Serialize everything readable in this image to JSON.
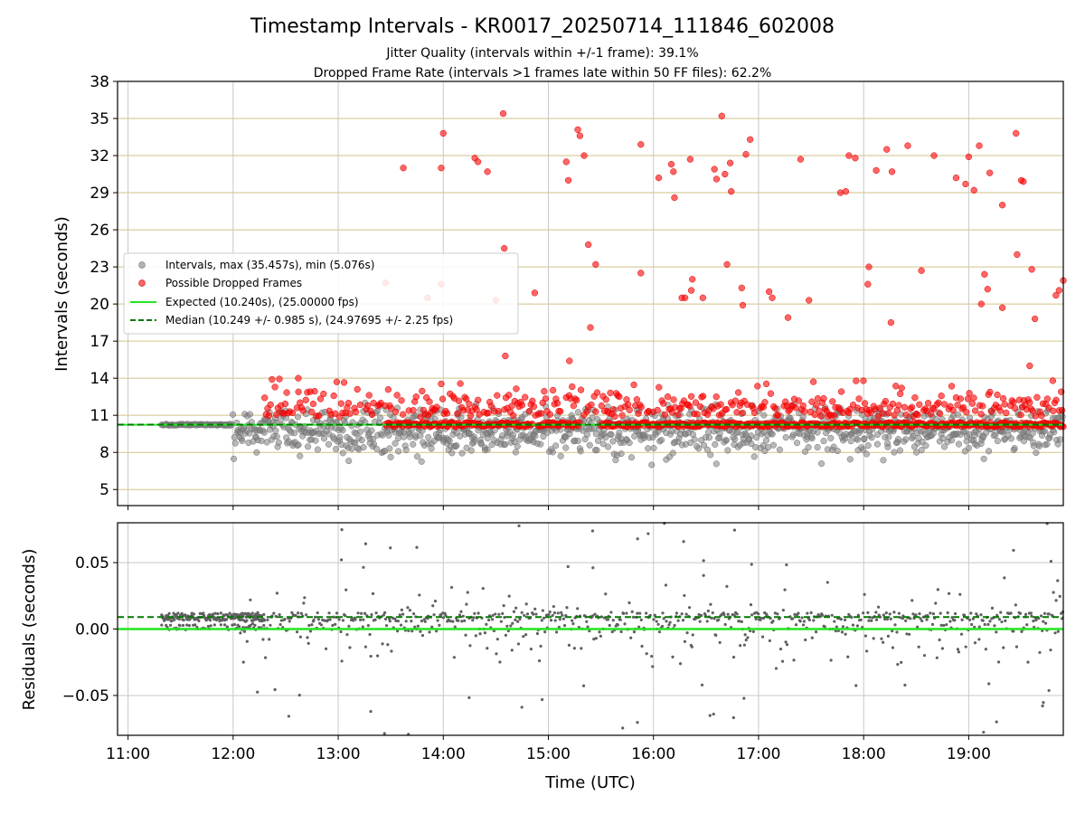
{
  "figure": {
    "title": "Timestamp Intervals - KR0017_20250714_111846_602008",
    "subtitle_1": "Jitter Quality (intervals within +/-1 frame): 39.1%",
    "subtitle_2": "Dropped Frame Rate (intervals >1 frames late within 50 FF files): 62.2%"
  },
  "chart_data": [
    {
      "type": "scatter",
      "panel": "top",
      "ylabel": "Intervals (seconds)",
      "xlabel": "",
      "xlim_hours": [
        10.9,
        19.9
      ],
      "ylim": [
        3.7,
        38
      ],
      "yticks": [
        5,
        8,
        11,
        14,
        17,
        20,
        23,
        26,
        29,
        32,
        35,
        38
      ],
      "ytick_labels": [
        "5",
        "8",
        "11",
        "14",
        "17",
        "20",
        "23",
        "26",
        "29",
        "32",
        "35",
        "38"
      ],
      "xticks_hours": [
        11,
        12,
        13,
        14,
        15,
        16,
        17,
        18,
        19
      ],
      "horizontal_grid": true,
      "vertical_grid": true,
      "legend_position": "center-left",
      "legend": [
        {
          "label": "Intervals, max (35.457s), min (5.076s)",
          "kind": "dot",
          "color": "#808080"
        },
        {
          "label": "Possible Dropped Frames",
          "kind": "dot",
          "color": "#ff0000"
        },
        {
          "label": "Expected (10.240s), (25.00000 fps)",
          "kind": "line",
          "color": "#22e622"
        },
        {
          "label": "Median (10.249 +/- 0.985 s), (24.97695 +/- 2.25 fps)",
          "kind": "dashed",
          "color": "#007a00"
        }
      ],
      "expected_interval": 10.24,
      "median_interval": 10.249,
      "intervals_max": 35.457,
      "intervals_min": 5.076,
      "dropped_outliers": [
        [
          12.37,
          13.9
        ],
        [
          12.62,
          14.0
        ],
        [
          13.62,
          31.0
        ],
        [
          13.98,
          31.0
        ],
        [
          14.0,
          33.8
        ],
        [
          14.3,
          31.8
        ],
        [
          14.33,
          31.5
        ],
        [
          14.42,
          30.7
        ],
        [
          14.57,
          35.4
        ],
        [
          14.58,
          24.5
        ],
        [
          14.59,
          15.8
        ],
        [
          14.5,
          20.3
        ],
        [
          13.45,
          21.7
        ],
        [
          13.98,
          21.6
        ],
        [
          13.85,
          20.5
        ],
        [
          14.87,
          20.9
        ],
        [
          15.17,
          31.5
        ],
        [
          15.19,
          30.0
        ],
        [
          15.28,
          34.1
        ],
        [
          15.3,
          33.6
        ],
        [
          15.34,
          32.0
        ],
        [
          15.38,
          24.8
        ],
        [
          15.4,
          18.1
        ],
        [
          15.45,
          23.2
        ],
        [
          15.2,
          15.4
        ],
        [
          15.88,
          32.9
        ],
        [
          15.88,
          22.5
        ],
        [
          16.05,
          30.2
        ],
        [
          16.17,
          31.3
        ],
        [
          16.19,
          30.7
        ],
        [
          16.2,
          28.6
        ],
        [
          16.27,
          20.5
        ],
        [
          16.3,
          20.5
        ],
        [
          16.35,
          31.7
        ],
        [
          16.37,
          22.0
        ],
        [
          16.36,
          21.1
        ],
        [
          16.47,
          20.5
        ],
        [
          16.58,
          30.9
        ],
        [
          16.6,
          30.1
        ],
        [
          16.65,
          35.2
        ],
        [
          16.68,
          30.5
        ],
        [
          16.7,
          23.2
        ],
        [
          16.73,
          31.4
        ],
        [
          16.74,
          29.1
        ],
        [
          16.84,
          21.3
        ],
        [
          16.85,
          19.9
        ],
        [
          16.88,
          32.1
        ],
        [
          16.92,
          33.3
        ],
        [
          17.1,
          21.0
        ],
        [
          17.13,
          20.5
        ],
        [
          17.28,
          18.9
        ],
        [
          17.4,
          31.7
        ],
        [
          17.48,
          20.3
        ],
        [
          17.78,
          29.0
        ],
        [
          17.83,
          29.1
        ],
        [
          17.86,
          32.0
        ],
        [
          17.92,
          31.8
        ],
        [
          18.05,
          23.0
        ],
        [
          18.04,
          21.6
        ],
        [
          18.12,
          30.8
        ],
        [
          18.22,
          32.5
        ],
        [
          18.27,
          30.7
        ],
        [
          18.26,
          18.5
        ],
        [
          18.42,
          32.8
        ],
        [
          18.55,
          22.7
        ],
        [
          18.67,
          32.0
        ],
        [
          18.88,
          30.2
        ],
        [
          18.97,
          29.7
        ],
        [
          19.0,
          31.9
        ],
        [
          19.05,
          29.2
        ],
        [
          19.1,
          32.8
        ],
        [
          19.12,
          20.0
        ],
        [
          19.15,
          22.4
        ],
        [
          19.18,
          21.2
        ],
        [
          19.2,
          30.6
        ],
        [
          19.32,
          28.0
        ],
        [
          19.32,
          19.7
        ],
        [
          19.45,
          33.8
        ],
        [
          19.46,
          24.0
        ],
        [
          19.5,
          30.0
        ],
        [
          19.52,
          29.9
        ],
        [
          19.58,
          15.0
        ],
        [
          19.6,
          22.8
        ],
        [
          19.63,
          18.8
        ],
        [
          19.8,
          13.8
        ],
        [
          19.83,
          20.7
        ],
        [
          19.86,
          21.1
        ],
        [
          19.88,
          12.9
        ],
        [
          19.9,
          21.9
        ]
      ]
    },
    {
      "type": "scatter",
      "panel": "bottom",
      "ylabel": "Residuals (seconds)",
      "xlabel": "Time (UTC)",
      "xlim_hours": [
        10.9,
        19.9
      ],
      "ylim": [
        -0.08,
        0.08
      ],
      "yticks": [
        -0.05,
        0.0,
        0.05
      ],
      "ytick_labels": [
        "−0.05",
        "0.00",
        "0.05"
      ],
      "xticks_hours": [
        11,
        12,
        13,
        14,
        15,
        16,
        17,
        18,
        19
      ],
      "xtick_labels": [
        "11:00",
        "12:00",
        "13:00",
        "14:00",
        "15:00",
        "16:00",
        "17:00",
        "18:00",
        "19:00"
      ],
      "horizontal_grid": true,
      "vertical_grid": true,
      "expected_residual": 0.0,
      "median_residual": 0.009
    }
  ],
  "colors": {
    "interval_dot": "#808080",
    "dropped_dot": "#ff0000",
    "expected_line": "#22e622",
    "median_line": "#007a00",
    "h_grid_top": "#d2c287",
    "grid": "#c8c8c8"
  }
}
